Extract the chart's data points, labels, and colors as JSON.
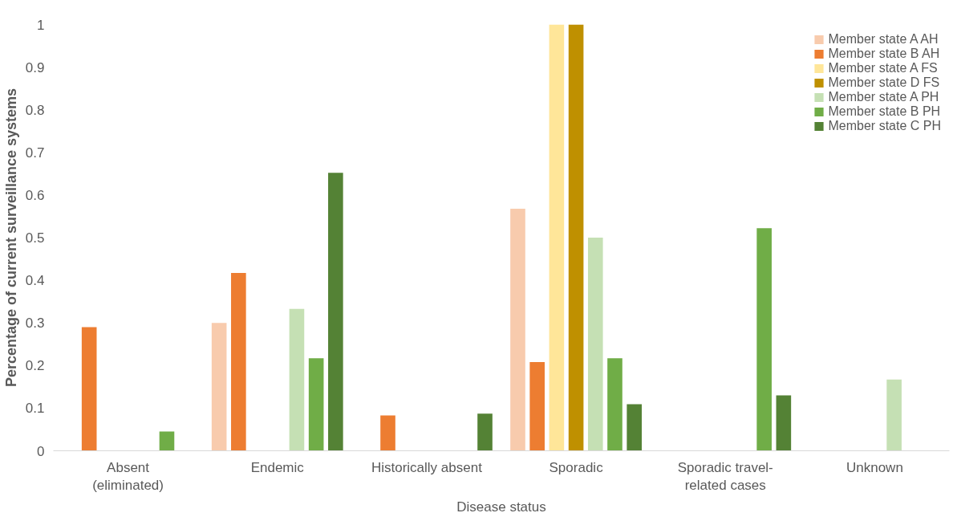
{
  "chart_data": {
    "type": "bar",
    "xlabel": "Disease status",
    "ylabel": "Percentage of current surveillance systems",
    "categories": [
      "Absent (eliminated)",
      "Endemic",
      "Historically absent",
      "Sporadic",
      "Sporadic travel-related cases",
      "Unknown"
    ],
    "series": [
      {
        "name": "Member state A AH",
        "color": "#f8cbad",
        "values": [
          null,
          0.3,
          null,
          0.568,
          null,
          null
        ]
      },
      {
        "name": "Member state B AH",
        "color": "#ed7d31",
        "values": [
          0.29,
          0.417,
          0.083,
          0.208,
          null,
          null
        ]
      },
      {
        "name": "Member state A FS",
        "color": "#ffe699",
        "values": [
          null,
          null,
          null,
          1,
          null,
          null
        ]
      },
      {
        "name": "Member state D FS",
        "color": "#bf9000",
        "values": [
          null,
          null,
          null,
          1,
          null,
          null
        ]
      },
      {
        "name": "Member state A PH",
        "color": "#c5e0b4",
        "values": [
          null,
          0.333,
          null,
          0.5,
          null,
          0.167
        ]
      },
      {
        "name": "Member state B PH",
        "color": "#70ad47",
        "values": [
          0.045,
          0.217,
          null,
          0.217,
          0.522,
          null
        ]
      },
      {
        "name": "Member state C PH",
        "color": "#548235",
        "values": [
          null,
          0.652,
          0.087,
          0.109,
          0.13,
          null
        ]
      }
    ],
    "ylim": [
      0,
      1
    ],
    "yticks": [
      0,
      0.1,
      0.2,
      0.3,
      0.4,
      0.5,
      0.6,
      0.7,
      0.8,
      0.9,
      1
    ],
    "grid": false,
    "legend": "top right"
  }
}
